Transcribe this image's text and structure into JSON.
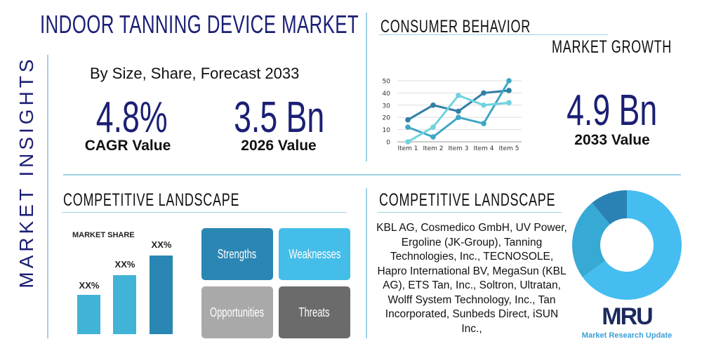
{
  "header": {
    "title": "INDOOR TANNING DEVICE MARKET",
    "side_label": "MARKET INSIGHTS"
  },
  "overview": {
    "subtitle": "By Size, Share, Forecast 2033",
    "cagr_value": "4.8%",
    "cagr_label": "CAGR Value",
    "value_2026": "3.5 Bn",
    "value_2026_label": "2026 Value"
  },
  "consumer": {
    "title": "CONSUMER BEHAVIOR",
    "growth_title": "MARKET GROWTH",
    "value_2033": "4.9 Bn",
    "value_2033_label": "2033 Value"
  },
  "competitive_left": {
    "title": "COMPETITIVE LANDSCAPE",
    "share_label": "MARKET SHARE",
    "bar_labels": [
      "XX%",
      "XX%",
      "XX%"
    ],
    "swot": [
      {
        "label": "Strengths",
        "color": "#2a86b3"
      },
      {
        "label": "Weaknesses",
        "color": "#44bde8"
      },
      {
        "label": "Opportunities",
        "color": "#a9a9a9"
      },
      {
        "label": "Threats",
        "color": "#6b6b6b"
      }
    ]
  },
  "competitive_right": {
    "title": "COMPETITIVE LANDSCAPE",
    "companies": "KBL AG, Cosmedico GmbH, UV Power, Ergoline (JK-Group), Tanning Technologies, Inc., TECNOSOLE, Hapro International BV, MegaSun (KBL AG), ETS Tan, Inc., Soltron, Ultratan, Wolff System Technology, Inc., Tan Incorporated, Sunbeds Direct, iSUN Inc.,"
  },
  "logo": {
    "text": "MRU",
    "caption": "Market Research Update"
  },
  "chart_data": [
    {
      "type": "line",
      "categories": [
        "Item 1",
        "Item 2",
        "Item 3",
        "Item 4",
        "Item 5"
      ],
      "ylim": [
        0,
        50
      ],
      "yticks": [
        0,
        10,
        20,
        30,
        40,
        50
      ],
      "grid": true,
      "series": [
        {
          "values": [
            18,
            30,
            25,
            40,
            42
          ],
          "color": "#2f7fa6"
        },
        {
          "values": [
            12,
            4,
            20,
            15,
            50
          ],
          "color": "#3ea6c4"
        },
        {
          "values": [
            0,
            12,
            38,
            30,
            32
          ],
          "color": "#6fd3df"
        }
      ]
    },
    {
      "type": "pie",
      "donut": true,
      "values": [
        65,
        24,
        11
      ],
      "colors": [
        "#45bdf0",
        "#36a9d4",
        "#2a82b4"
      ]
    }
  ]
}
